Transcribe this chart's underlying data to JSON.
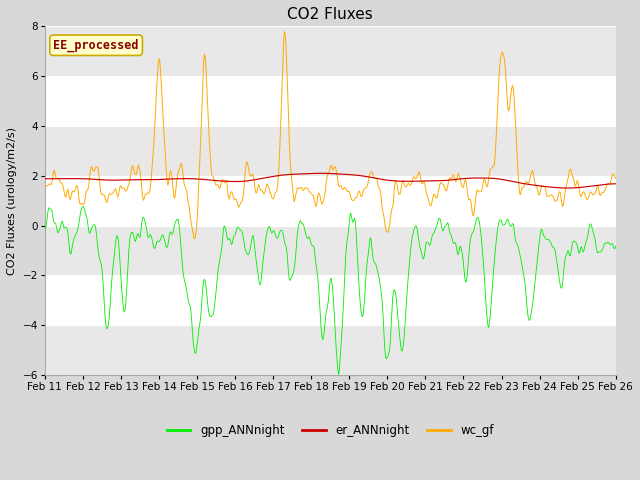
{
  "title": "CO2 Fluxes",
  "ylabel": "CO2 Fluxes (urology/m2/s)",
  "ylim": [
    -6,
    8
  ],
  "yticks": [
    -6,
    -4,
    -2,
    0,
    2,
    4,
    6,
    8
  ],
  "annotation_text": "EE_processed",
  "annotation_color": "#880000",
  "annotation_bg": "#ffffcc",
  "annotation_border": "#ccaa00",
  "green_color": "#00ee00",
  "red_color": "#cc0000",
  "orange_color": "#ffaa00",
  "legend_labels": [
    "gpp_ANNnight",
    "er_ANNnight",
    "wc_gf"
  ],
  "bg_color": "#d8d8d8",
  "plot_bg": "#ffffff",
  "band_color": "#e8e8e8",
  "title_fontsize": 11,
  "axis_fontsize": 8,
  "tick_fontsize": 7.5,
  "n_points": 720,
  "seed": 12345
}
